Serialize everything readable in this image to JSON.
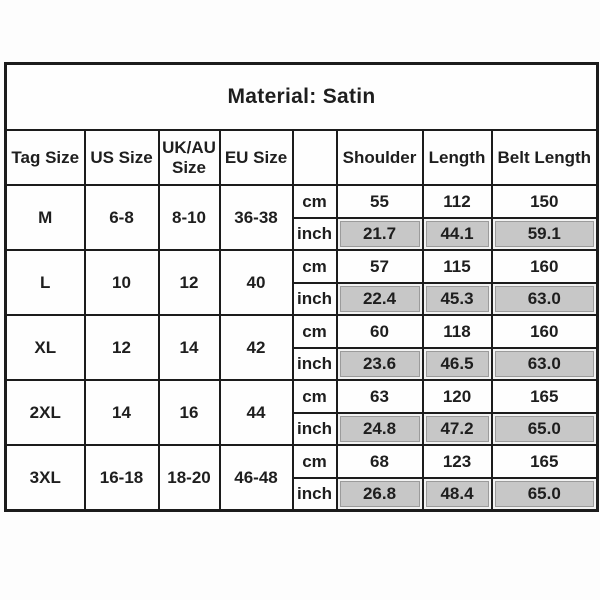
{
  "material_label": "Material: Satin",
  "colors": {
    "grid": "#1c1c1c",
    "inch_highlight": "#c7c7c7",
    "text": "#1e1e1e",
    "background": "#fdfdfd"
  },
  "chart_data": {
    "type": "table",
    "title": "Material: Satin",
    "columns": [
      "Tag Size",
      "US Size",
      "UK/AU Size",
      "EU Size",
      "",
      "Shoulder",
      "Length",
      "Belt Length"
    ],
    "unit_rows": [
      "cm",
      "inch"
    ],
    "rows": [
      {
        "tag_size": "M",
        "us_size": "6-8",
        "uk_au_size": "8-10",
        "eu_size": "36-38",
        "cm": {
          "shoulder": "55",
          "length": "112",
          "belt_length": "150"
        },
        "inch": {
          "shoulder": "21.7",
          "length": "44.1",
          "belt_length": "59.1"
        }
      },
      {
        "tag_size": "L",
        "us_size": "10",
        "uk_au_size": "12",
        "eu_size": "40",
        "cm": {
          "shoulder": "57",
          "length": "115",
          "belt_length": "160"
        },
        "inch": {
          "shoulder": "22.4",
          "length": "45.3",
          "belt_length": "63.0"
        }
      },
      {
        "tag_size": "XL",
        "us_size": "12",
        "uk_au_size": "14",
        "eu_size": "42",
        "cm": {
          "shoulder": "60",
          "length": "118",
          "belt_length": "160"
        },
        "inch": {
          "shoulder": "23.6",
          "length": "46.5",
          "belt_length": "63.0"
        }
      },
      {
        "tag_size": "2XL",
        "us_size": "14",
        "uk_au_size": "16",
        "eu_size": "44",
        "cm": {
          "shoulder": "63",
          "length": "120",
          "belt_length": "165"
        },
        "inch": {
          "shoulder": "24.8",
          "length": "47.2",
          "belt_length": "65.0"
        }
      },
      {
        "tag_size": "3XL",
        "us_size": "16-18",
        "uk_au_size": "18-20",
        "eu_size": "46-48",
        "cm": {
          "shoulder": "68",
          "length": "123",
          "belt_length": "165"
        },
        "inch": {
          "shoulder": "26.8",
          "length": "48.4",
          "belt_length": "65.0"
        }
      }
    ]
  }
}
